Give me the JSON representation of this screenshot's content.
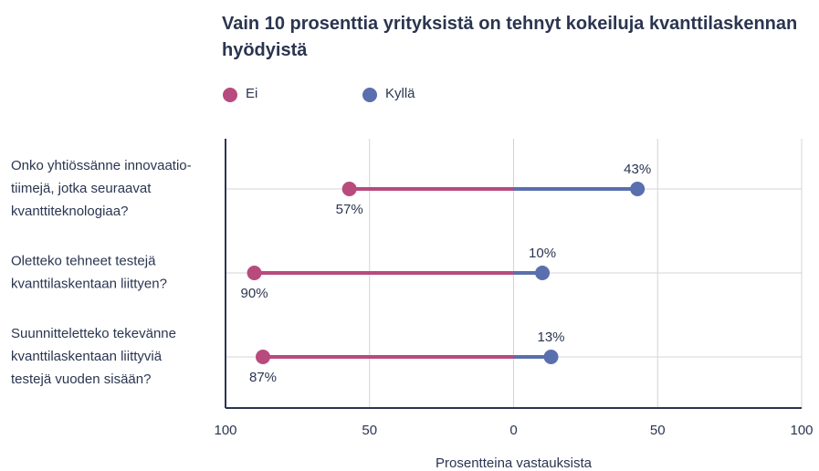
{
  "chart_data": {
    "type": "diverging-dot",
    "title": "Vain 10 prosenttia yrityksistä on tehnyt kokeiluja kvanttilaskennan hyödyistä",
    "xlabel": "Prosentteina vastauksista",
    "categories": [
      [
        "Onko yhtiössänne innovaatio-",
        "tiimejä, jotka seuraavat",
        "kvanttiteknologiaa?"
      ],
      [
        "Oletteko tehneet testejä",
        "kvanttilaskentaan liittyen?"
      ],
      [
        "Suunnitteletteko tekevänne",
        "kvanttilaskentaan liittyviä",
        "testejä vuoden sisään?"
      ]
    ],
    "series": [
      {
        "name": "Ei",
        "color": "#b84a7e",
        "side": "left",
        "values": [
          57,
          90,
          87
        ],
        "value_labels": [
          "57%",
          "90%",
          "87%"
        ]
      },
      {
        "name": "Kyllä",
        "color": "#5a6fae",
        "side": "right",
        "values": [
          43,
          10,
          13
        ],
        "value_labels": [
          "43%",
          "10%",
          "13%"
        ]
      }
    ],
    "xlim": [
      -100,
      100
    ],
    "xticks": [
      {
        "value": -100,
        "label": "100"
      },
      {
        "value": -50,
        "label": "50"
      },
      0,
      50,
      100
    ],
    "grid": true,
    "legend": "top-left"
  }
}
